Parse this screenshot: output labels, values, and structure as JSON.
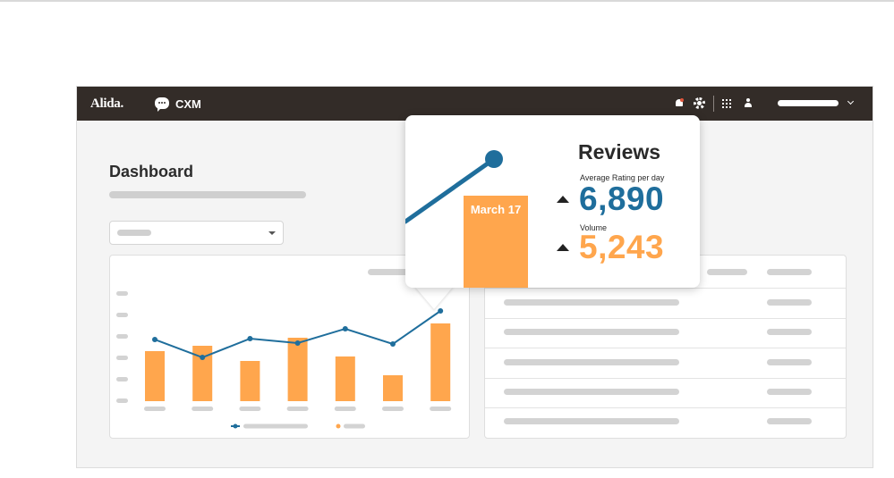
{
  "header": {
    "logo": "Alida.",
    "app_name": "CXM",
    "icons": [
      "chat-icon",
      "bell-icon",
      "gear-icon",
      "grid-icon",
      "user-icon",
      "chevron-down-icon"
    ],
    "notification_color": "#e1553b"
  },
  "page": {
    "title": "Dashboard"
  },
  "popup": {
    "title": "Reviews",
    "bar_label": "March 17",
    "metrics": [
      {
        "label": "Average Rating per day",
        "value": "6,890",
        "trend": "up",
        "color": "#1f6e9c"
      },
      {
        "label": "Volume",
        "value": "5,243",
        "trend": "up",
        "color": "#ffa64d"
      }
    ]
  },
  "colors": {
    "topbar": "#332c28",
    "bar": "#ffa64d",
    "line": "#1f6e9c"
  },
  "chart_data": {
    "type": "bar",
    "categories": [
      "",
      "",
      "",
      "",
      "",
      "",
      ""
    ],
    "series": [
      {
        "values": [
          56,
          62,
          45,
          71,
          50,
          29,
          87
        ]
      },
      {
        "values": [
          69,
          49,
          70,
          65,
          81,
          64,
          101
        ]
      }
    ]
  }
}
